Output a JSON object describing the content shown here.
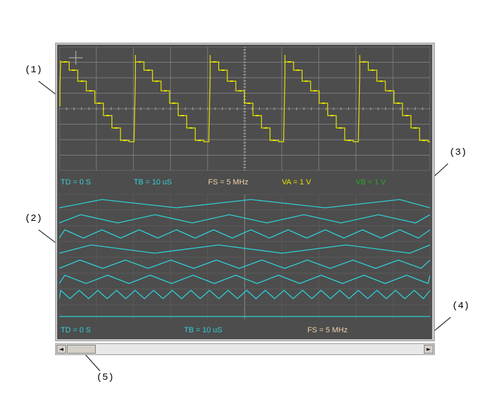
{
  "callouts": {
    "c1": "(1)",
    "c2": "(2)",
    "c3": "(3)",
    "c4": "(4)",
    "c5": "(5)"
  },
  "analog_readouts": {
    "td": "TD = 0 S",
    "tb": "TB = 10 uS",
    "fs": "FS = 5 MHz",
    "va": "VA = 1 V",
    "vb": "VB = 1 V"
  },
  "digital_readouts": {
    "td": "TD = 0 S",
    "tb": "TB = 10 uS",
    "fs": "FS = 5 MHz"
  },
  "scrollbar": {
    "left_arrow": "◄",
    "right_arrow": "►"
  },
  "colors": {
    "screen_bg": "#4d4d4d",
    "grid": "#7a7a7a",
    "analog_trace": "#e6e600",
    "digital_trace": "#2ed0d6",
    "td_color": "#33d1d8",
    "tb_color": "#33d1d8",
    "fs_color": "#f0d2a8",
    "va_color": "#e6e600",
    "vb_color": "#22aa22"
  },
  "icons": {
    "cursor": "crosshair-icon"
  }
}
